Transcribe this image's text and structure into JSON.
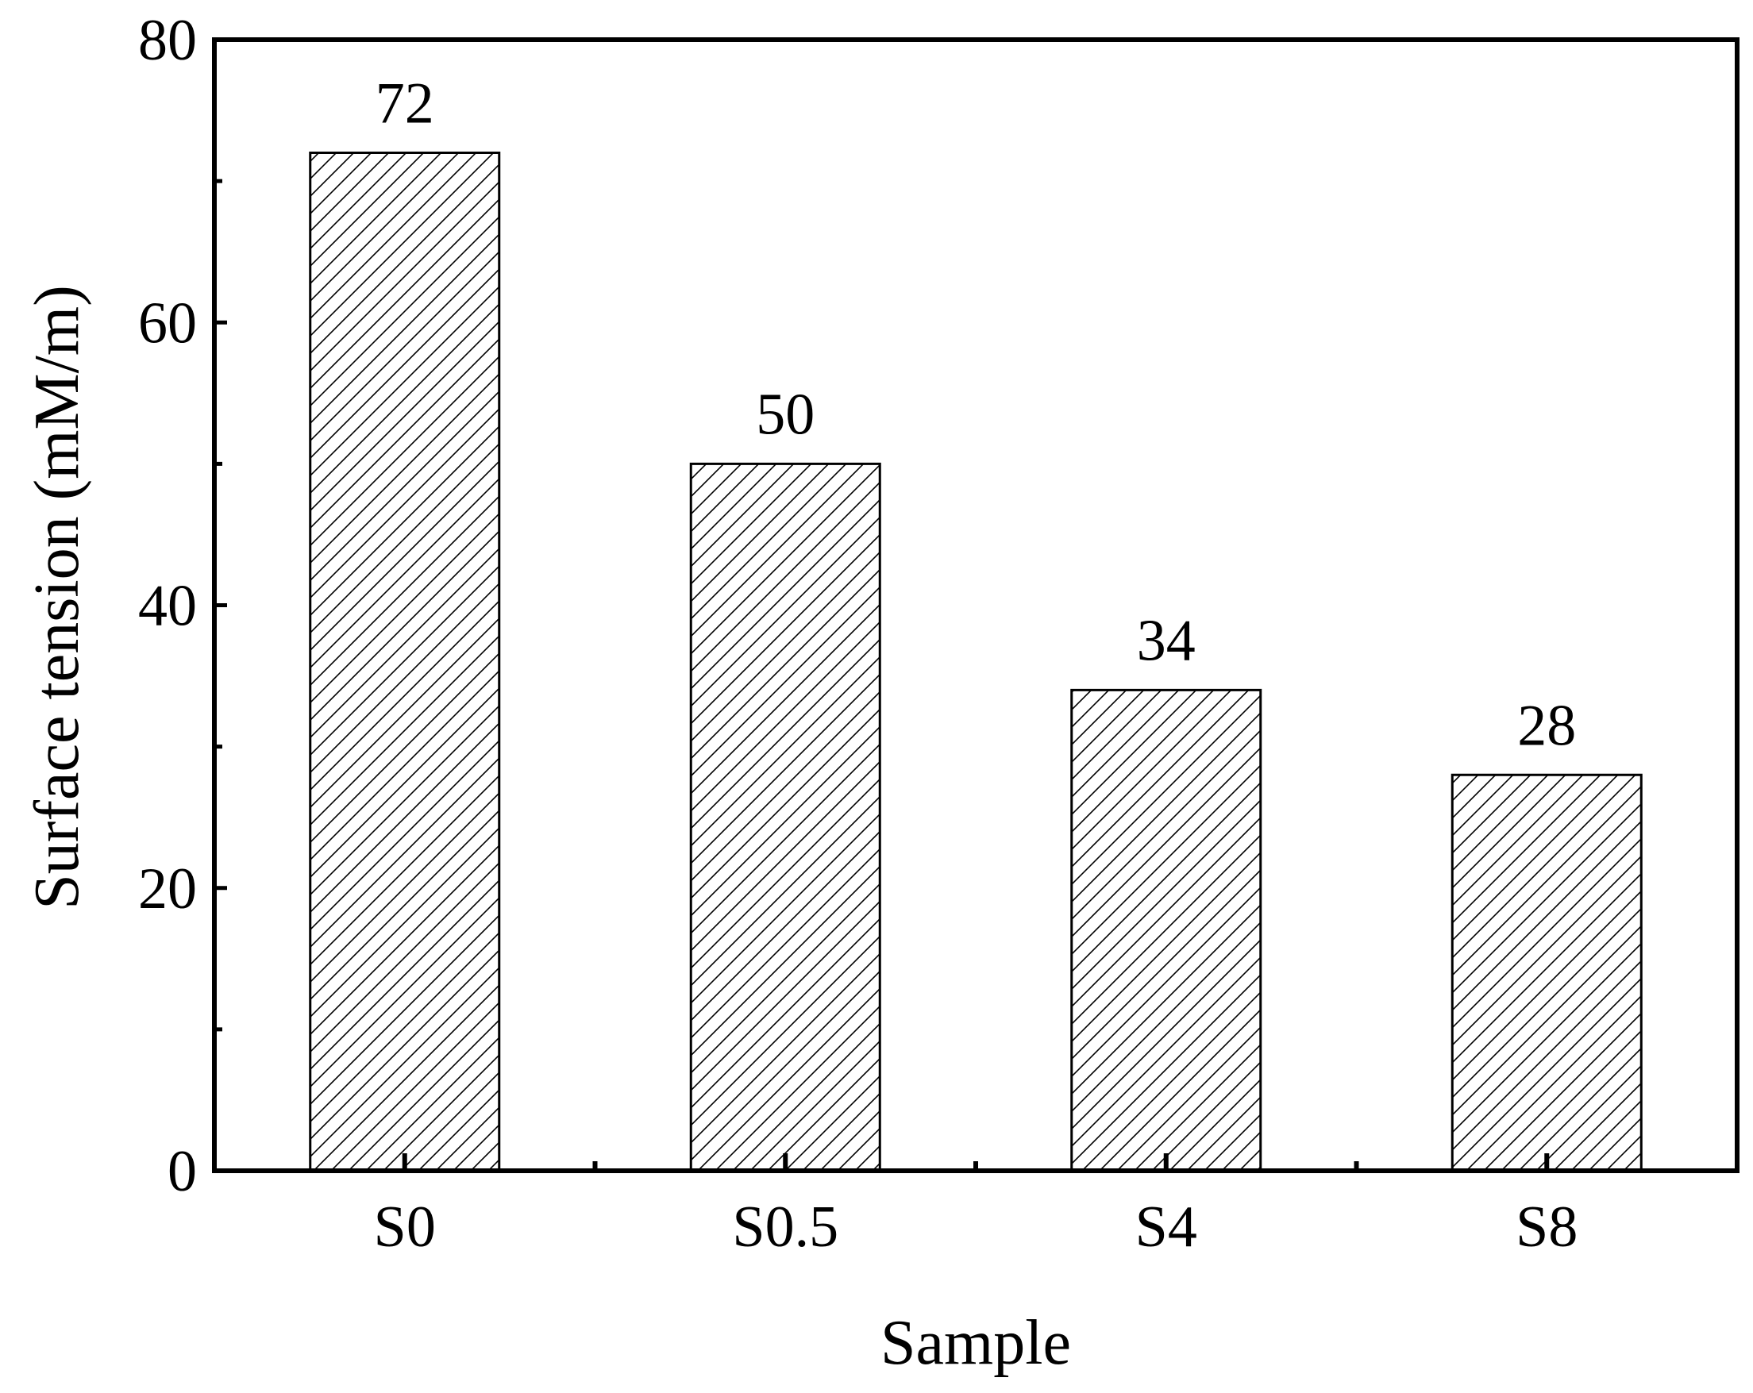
{
  "chart_data": {
    "type": "bar",
    "categories": [
      "S0",
      "S0.5",
      "S4",
      "S8"
    ],
    "values": [
      72,
      50,
      34,
      28
    ],
    "data_labels": [
      "72",
      "50",
      "34",
      "28"
    ],
    "xlabel": "Sample",
    "ylabel": "Surface tension (mM/m)",
    "ylim": [
      0,
      80
    ],
    "yticks": [
      0,
      20,
      40,
      60,
      80
    ],
    "ytick_labels": [
      "0",
      "20",
      "40",
      "60",
      "80"
    ],
    "grid": false,
    "legend": "none",
    "bar_fill": "hatched",
    "colors": {
      "bar_stroke": "#000000",
      "hatch": "#000000",
      "background": "#ffffff"
    }
  }
}
